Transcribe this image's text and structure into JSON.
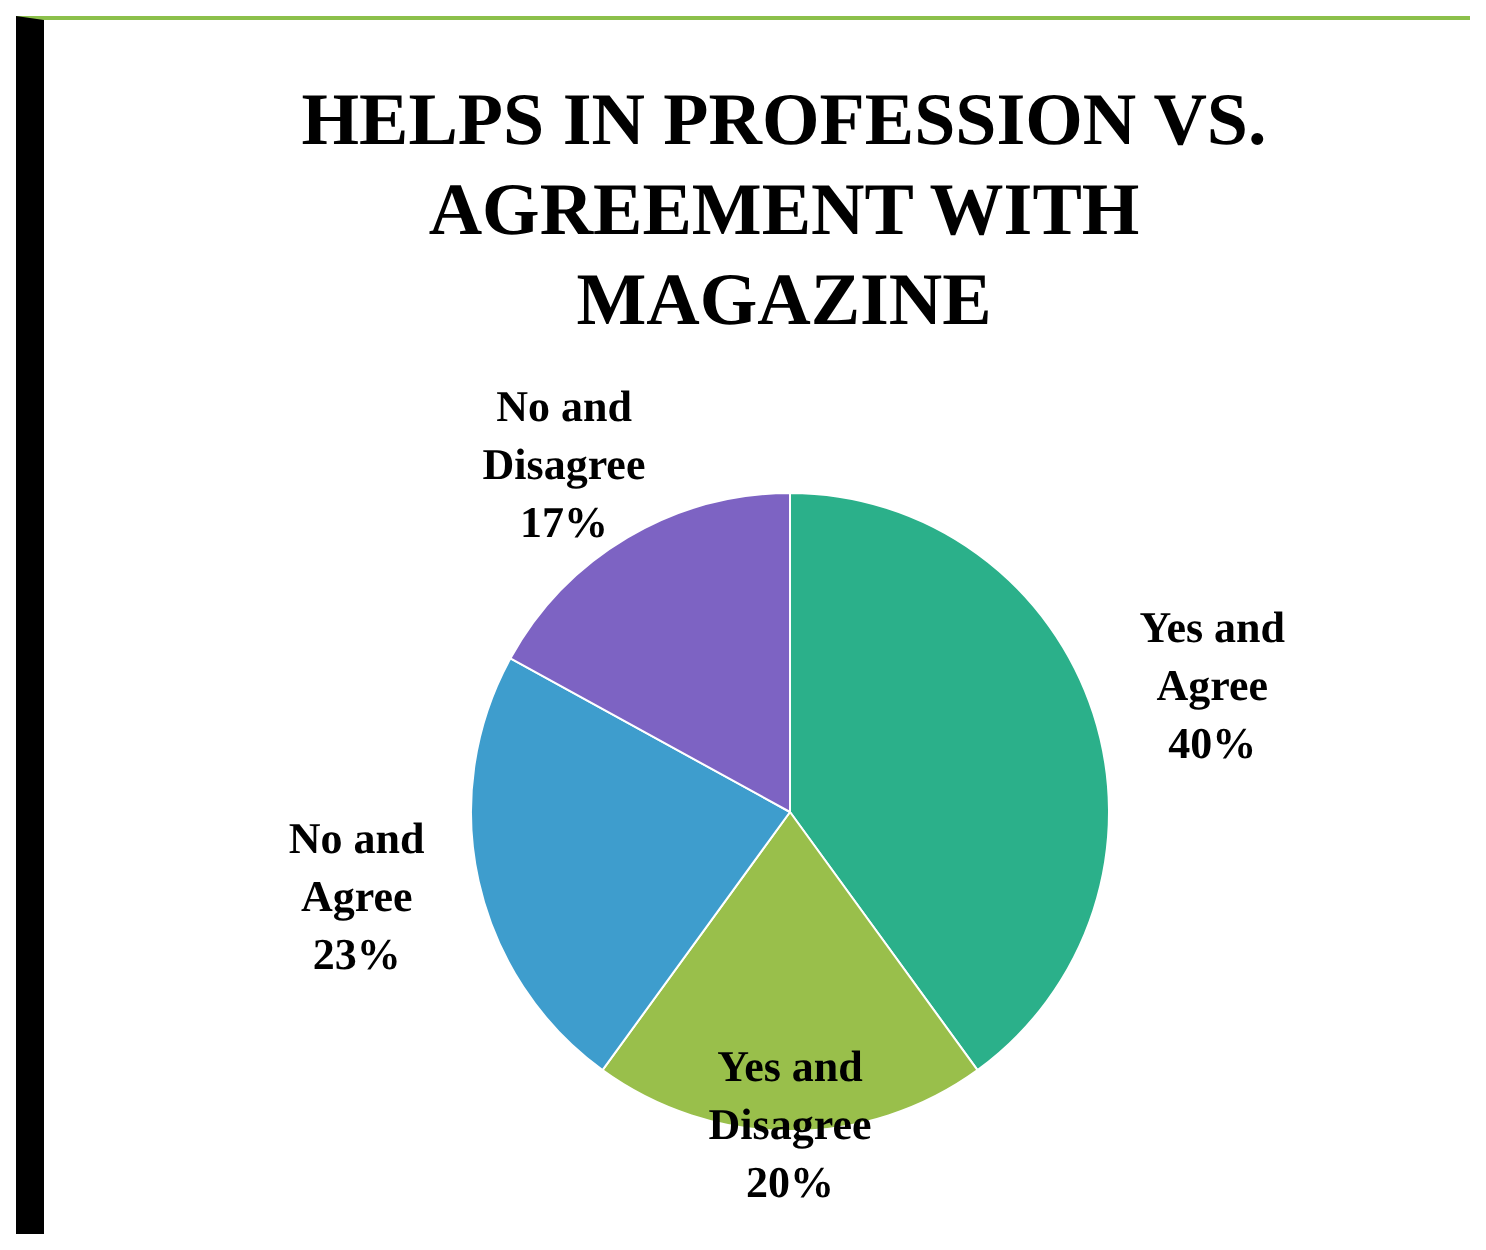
{
  "chart_data": {
    "type": "pie",
    "title": "HELPS IN PROFESSION VS. AGREEMENT WITH MAGAZINE",
    "categories": [
      "Yes and Agree",
      "Yes and Disagree",
      "No and Agree",
      "No and Disagree"
    ],
    "values": [
      40,
      20,
      23,
      17
    ],
    "value_labels": [
      "40%",
      "20%",
      "23%",
      "17%"
    ],
    "colors": [
      "#2bb08a",
      "#99bf4b",
      "#3e9dcd",
      "#7d63c3"
    ]
  }
}
